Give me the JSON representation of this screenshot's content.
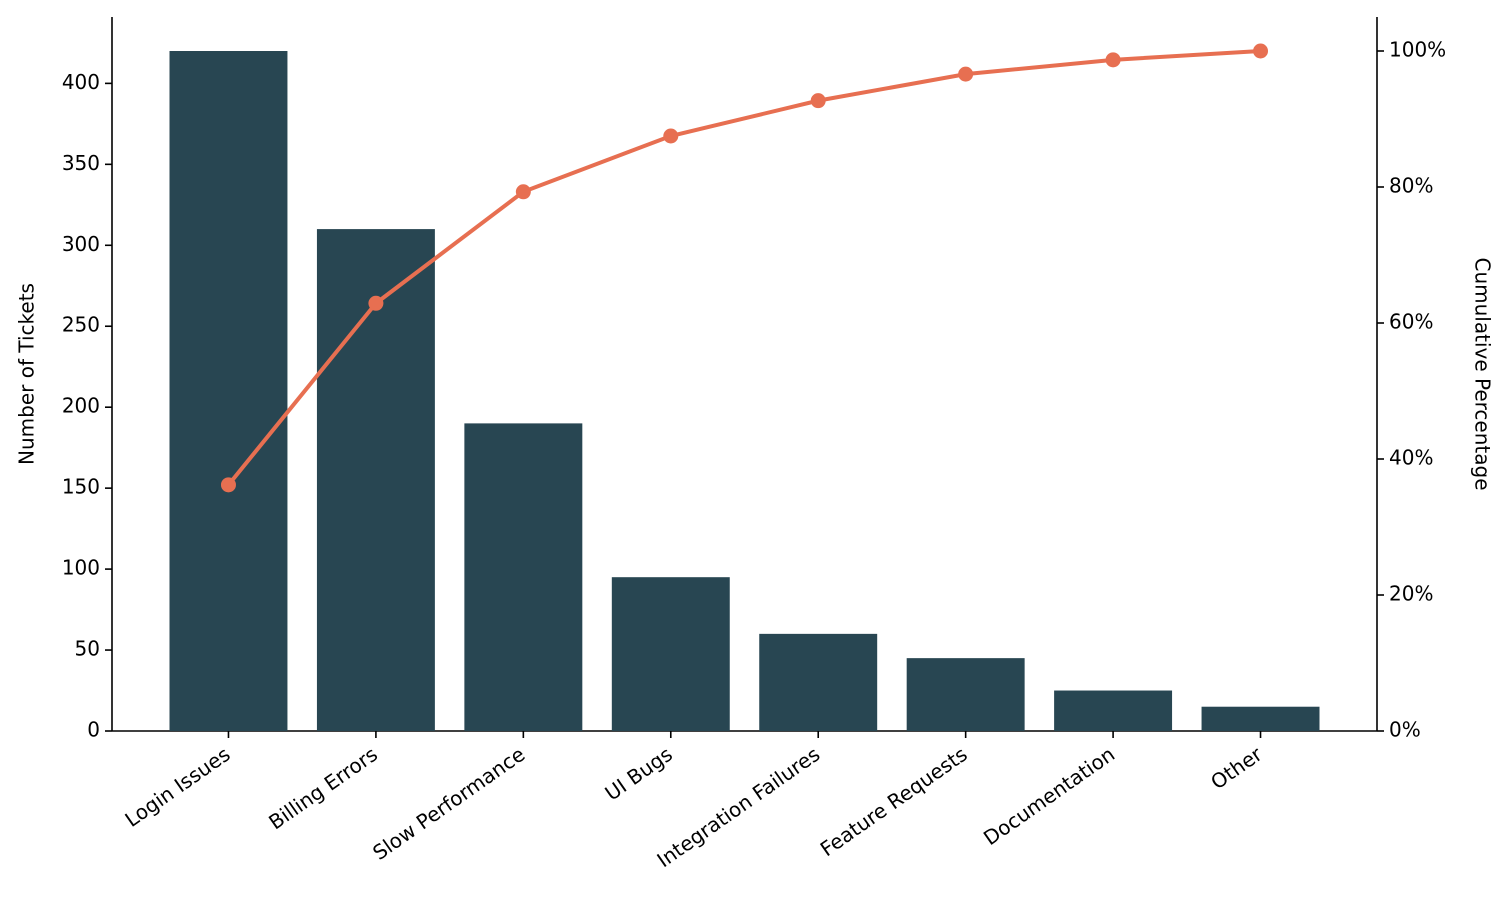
{
  "chart_data": {
    "type": "bar",
    "categories": [
      "Login Issues",
      "Billing Errors",
      "Slow Performance",
      "UI Bugs",
      "Integration Failures",
      "Feature Requests",
      "Documentation",
      "Other"
    ],
    "series": [
      {
        "type": "bar",
        "color": "#284652",
        "values": [
          420,
          310,
          190,
          95,
          60,
          45,
          25,
          15
        ]
      },
      {
        "type": "line",
        "axis": "y2",
        "color": "#e76f51",
        "values": [
          36.2,
          62.9,
          79.3,
          87.5,
          92.7,
          96.6,
          98.7,
          100
        ]
      }
    ],
    "y_label": "Number of Tickets",
    "y2_label": "Cumulative Percentage",
    "ylim": [
      0,
      441
    ],
    "yticks": [
      0,
      50,
      100,
      150,
      200,
      250,
      300,
      350,
      400
    ],
    "y2lim": [
      0,
      105
    ],
    "y2ticks": [
      {
        "value": 0,
        "label": "0%"
      },
      {
        "value": 20,
        "label": "20%"
      },
      {
        "value": 40,
        "label": "40%"
      },
      {
        "value": 60,
        "label": "60%"
      },
      {
        "value": 80,
        "label": "80%"
      },
      {
        "value": 100,
        "label": "100%"
      }
    ],
    "grid": false
  }
}
